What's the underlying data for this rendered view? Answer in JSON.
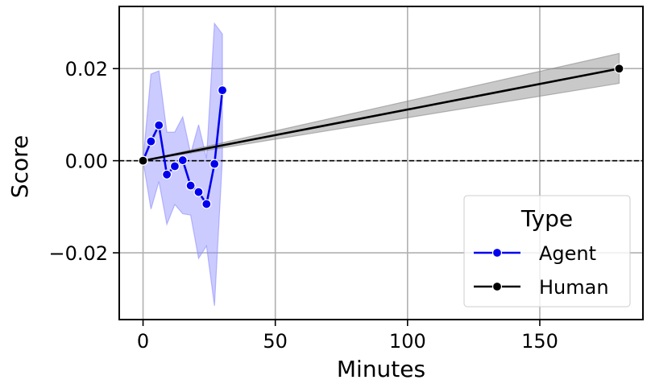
{
  "chart_data": {
    "type": "line",
    "title": "",
    "xlabel": "Minutes",
    "ylabel": "Score",
    "xlim": [
      -9,
      189
    ],
    "ylim": [
      -0.0345,
      0.0335
    ],
    "x_ticks": [
      0,
      50,
      100,
      150
    ],
    "x_tick_labels": [
      "0",
      "50",
      "100",
      "150"
    ],
    "y_ticks": [
      -0.02,
      0.0,
      0.02
    ],
    "y_tick_labels": [
      "−0.02",
      "0.00",
      "0.02"
    ],
    "grid": true,
    "reference_line": {
      "y": 0.0,
      "style": "dashed",
      "color": "#000000"
    },
    "legend": {
      "title": "Type",
      "position": "bottom-right"
    },
    "series": [
      {
        "name": "Agent",
        "color": "#0000ee",
        "band_color": "#8c8cff",
        "marker": "circle",
        "x": [
          0,
          3,
          6,
          9,
          12,
          15,
          18,
          21,
          24,
          27,
          30
        ],
        "y": [
          0.0,
          0.0042,
          0.0077,
          -0.003,
          -0.0012,
          0.0001,
          -0.0054,
          -0.0068,
          -0.0094,
          -0.0007,
          0.0153
        ],
        "ci_lower": [
          0.0,
          -0.0105,
          -0.0045,
          -0.0138,
          -0.0095,
          -0.0115,
          -0.0118,
          -0.0212,
          -0.0185,
          -0.0315,
          0.0005
        ],
        "ci_upper": [
          0.0,
          0.0188,
          0.0195,
          0.0062,
          0.0062,
          0.0095,
          0.0015,
          0.0078,
          0.0005,
          0.0298,
          0.0275
        ]
      },
      {
        "name": "Human",
        "color": "#000000",
        "band_color": "#888888",
        "marker": "circle",
        "marker_indices": [
          0,
          1
        ],
        "x": [
          0,
          180
        ],
        "y": [
          0.0,
          0.02
        ],
        "ci_lower": [
          0.0,
          0.0168
        ],
        "ci_upper": [
          0.0,
          0.0233
        ]
      }
    ]
  }
}
